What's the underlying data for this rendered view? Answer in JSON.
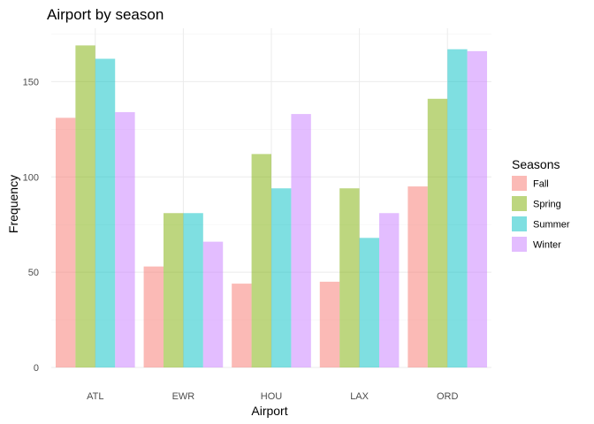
{
  "chart_data": {
    "type": "bar",
    "title": "Airport by season",
    "xlabel": "Airport",
    "ylabel": "Frequency",
    "categories": [
      "ATL",
      "EWR",
      "HOU",
      "LAX",
      "ORD"
    ],
    "ylim": [
      0,
      178
    ],
    "yticks": [
      0,
      50,
      100,
      150
    ],
    "grid": true,
    "legend_title": "Seasons",
    "legend_position": "right",
    "series": [
      {
        "name": "Fall",
        "color": "#F8766D",
        "values": [
          131,
          53,
          44,
          45,
          95
        ]
      },
      {
        "name": "Spring",
        "color": "#7CAE00",
        "values": [
          169,
          81,
          112,
          94,
          141
        ]
      },
      {
        "name": "Summer",
        "color": "#00BFC4",
        "values": [
          162,
          81,
          94,
          68,
          167
        ]
      },
      {
        "name": "Winter",
        "color": "#C77CFF",
        "values": [
          134,
          66,
          133,
          81,
          166
        ]
      }
    ]
  }
}
